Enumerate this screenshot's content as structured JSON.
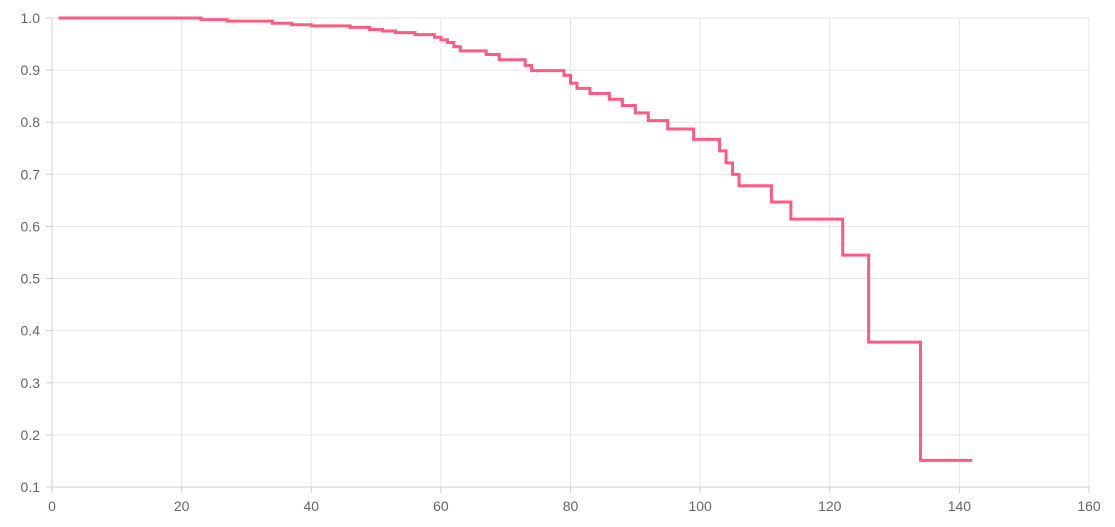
{
  "chart_data": {
    "type": "line",
    "step": "after",
    "title": "",
    "xlabel": "",
    "ylabel": "",
    "xlim": [
      0,
      160
    ],
    "ylim": [
      0.1,
      1.0
    ],
    "x_ticks": [
      0,
      20,
      40,
      60,
      80,
      100,
      120,
      140,
      160
    ],
    "x_tick_labels": [
      "0",
      "20",
      "40",
      "60",
      "80",
      "100",
      "120",
      "140",
      "160"
    ],
    "y_ticks": [
      1.0,
      0.9,
      0.8,
      0.7,
      0.6,
      0.5,
      0.4,
      0.3,
      0.2,
      0.1
    ],
    "y_tick_labels": [
      "1.0",
      "0.9",
      "0.8",
      "0.7",
      "0.6",
      "0.5",
      "0.4",
      "0.3",
      "0.2",
      "0.1"
    ],
    "grid": true,
    "legend": "none",
    "series": [
      {
        "color": "#ff5c85",
        "x": [
          1,
          23,
          27,
          34,
          37,
          40,
          46,
          49,
          51,
          53,
          56,
          59,
          60,
          61,
          62,
          63,
          67,
          69,
          73,
          74,
          79,
          80,
          81,
          83,
          86,
          88,
          90,
          92,
          95,
          99,
          103,
          104,
          105,
          106,
          111,
          114,
          122,
          126,
          134,
          142
        ],
        "y": [
          1.0,
          0.997,
          0.994,
          0.99,
          0.987,
          0.985,
          0.982,
          0.978,
          0.975,
          0.972,
          0.968,
          0.963,
          0.958,
          0.953,
          0.945,
          0.937,
          0.93,
          0.92,
          0.909,
          0.899,
          0.89,
          0.875,
          0.865,
          0.855,
          0.844,
          0.832,
          0.818,
          0.803,
          0.787,
          0.767,
          0.745,
          0.722,
          0.7,
          0.678,
          0.647,
          0.614,
          0.545,
          0.378,
          0.151,
          0.151
        ]
      }
    ]
  }
}
